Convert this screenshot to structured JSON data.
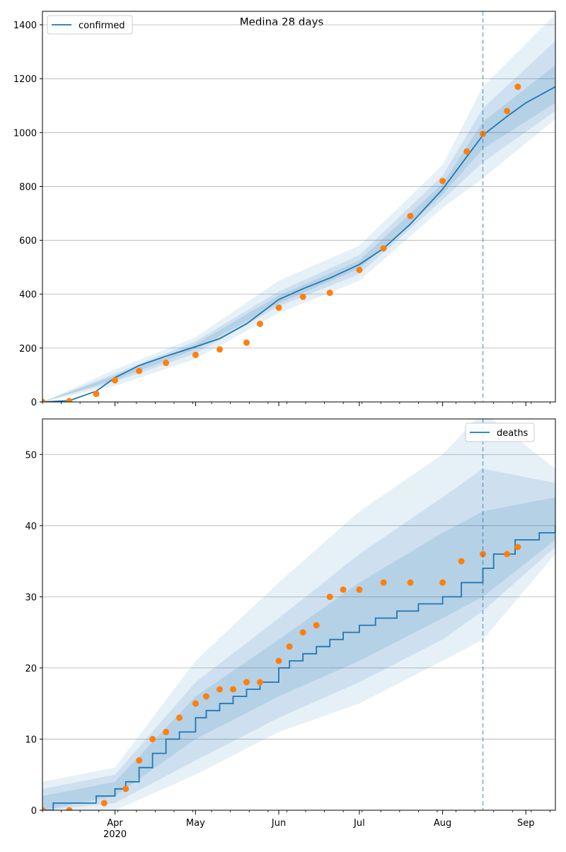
{
  "figure": {
    "title": "Medina 28 days"
  },
  "colors": {
    "line": "#1f77b4",
    "observed": "#ff7f0e",
    "band": "#1f77b4",
    "grid": "#b0b0b0",
    "cutoff": "#1f77b4"
  },
  "chart_data": [
    {
      "type": "line",
      "title": "Medina 28 days",
      "xlabel": "",
      "ylabel": "",
      "xlim": [
        "2020-03-05",
        "2020-09-12"
      ],
      "ylim": [
        0,
        1450
      ],
      "yticks": [
        0,
        200,
        400,
        600,
        800,
        1000,
        1200,
        1400
      ],
      "xtick_labels": [],
      "grid": "horizontal",
      "legend": {
        "position": "upper-left",
        "entries": [
          "confirmed"
        ]
      },
      "cutoff_date": "2020-08-16",
      "series": [
        {
          "name": "confirmed",
          "kind": "model-median",
          "x": [
            "2020-03-05",
            "2020-03-15",
            "2020-03-25",
            "2020-04-01",
            "2020-04-10",
            "2020-04-20",
            "2020-05-01",
            "2020-05-10",
            "2020-05-20",
            "2020-06-01",
            "2020-06-10",
            "2020-06-20",
            "2020-07-01",
            "2020-07-10",
            "2020-07-20",
            "2020-08-01",
            "2020-08-10",
            "2020-08-16",
            "2020-08-25",
            "2020-09-01",
            "2020-09-12"
          ],
          "y": [
            0,
            5,
            40,
            90,
            135,
            170,
            205,
            235,
            290,
            380,
            420,
            460,
            510,
            570,
            660,
            790,
            910,
            990,
            1060,
            1110,
            1170
          ]
        },
        {
          "name": "observed",
          "kind": "points",
          "x": [
            "2020-03-05",
            "2020-03-15",
            "2020-03-25",
            "2020-04-01",
            "2020-04-10",
            "2020-04-20",
            "2020-05-01",
            "2020-05-10",
            "2020-05-20",
            "2020-05-25",
            "2020-06-01",
            "2020-06-10",
            "2020-06-20",
            "2020-07-01",
            "2020-07-10",
            "2020-07-20",
            "2020-08-01",
            "2020-08-10",
            "2020-08-16",
            "2020-08-25",
            "2020-08-29"
          ],
          "y": [
            0,
            3,
            30,
            80,
            115,
            145,
            175,
            195,
            220,
            290,
            350,
            390,
            405,
            490,
            570,
            690,
            820,
            930,
            995,
            1080,
            1170
          ]
        }
      ],
      "bands": [
        {
          "level": "outer",
          "x": [
            "2020-03-05",
            "2020-04-01",
            "2020-05-01",
            "2020-06-01",
            "2020-07-01",
            "2020-08-01",
            "2020-08-16",
            "2020-09-12"
          ],
          "lo": [
            0,
            60,
            160,
            330,
            450,
            720,
            830,
            1050
          ],
          "hi": [
            0,
            120,
            240,
            450,
            580,
            880,
            1170,
            1440
          ]
        },
        {
          "level": "middle",
          "x": [
            "2020-03-05",
            "2020-04-01",
            "2020-05-01",
            "2020-06-01",
            "2020-07-01",
            "2020-08-01",
            "2020-08-16",
            "2020-09-12"
          ],
          "lo": [
            0,
            75,
            180,
            355,
            475,
            750,
            890,
            1080
          ],
          "hi": [
            0,
            105,
            225,
            410,
            545,
            840,
            1090,
            1340
          ]
        },
        {
          "level": "inner",
          "x": [
            "2020-03-05",
            "2020-04-01",
            "2020-05-01",
            "2020-06-01",
            "2020-07-01",
            "2020-08-01",
            "2020-08-16",
            "2020-09-12"
          ],
          "lo": [
            0,
            82,
            195,
            365,
            495,
            770,
            940,
            1110
          ],
          "hi": [
            0,
            98,
            215,
            395,
            525,
            810,
            1040,
            1250
          ]
        }
      ]
    },
    {
      "type": "line",
      "title": "",
      "xlabel": "",
      "ylabel": "",
      "xlim": [
        "2020-03-05",
        "2020-09-12"
      ],
      "ylim": [
        0,
        55
      ],
      "yticks": [
        0,
        10,
        20,
        30,
        40,
        50
      ],
      "xtick_labels": [
        {
          "date": "2020-04-01",
          "label": "Apr"
        },
        {
          "date": "2020-05-01",
          "label": "May"
        },
        {
          "date": "2020-06-01",
          "label": "Jun"
        },
        {
          "date": "2020-07-01",
          "label": "Jul"
        },
        {
          "date": "2020-08-01",
          "label": "Aug"
        },
        {
          "date": "2020-09-01",
          "label": "Sep"
        }
      ],
      "xaxis_year_label": "2020",
      "grid": "horizontal",
      "legend": {
        "position": "upper-right",
        "entries": [
          "deaths"
        ]
      },
      "cutoff_date": "2020-08-16",
      "series": [
        {
          "name": "deaths",
          "kind": "model-median-step",
          "x": [
            "2020-03-05",
            "2020-03-09",
            "2020-03-25",
            "2020-04-01",
            "2020-04-05",
            "2020-04-10",
            "2020-04-15",
            "2020-04-20",
            "2020-04-25",
            "2020-05-01",
            "2020-05-05",
            "2020-05-10",
            "2020-05-15",
            "2020-05-20",
            "2020-05-25",
            "2020-06-01",
            "2020-06-05",
            "2020-06-10",
            "2020-06-15",
            "2020-06-20",
            "2020-06-25",
            "2020-07-01",
            "2020-07-07",
            "2020-07-15",
            "2020-07-23",
            "2020-08-01",
            "2020-08-08",
            "2020-08-16",
            "2020-08-20",
            "2020-08-28",
            "2020-09-06",
            "2020-09-12"
          ],
          "y": [
            0,
            1,
            2,
            3,
            4,
            6,
            8,
            10,
            11,
            13,
            14,
            15,
            16,
            17,
            18,
            20,
            21,
            22,
            23,
            24,
            25,
            26,
            27,
            28,
            29,
            30,
            32,
            34,
            36,
            38,
            39,
            40
          ]
        },
        {
          "name": "observed",
          "kind": "points",
          "x": [
            "2020-03-05",
            "2020-03-15",
            "2020-03-28",
            "2020-04-05",
            "2020-04-10",
            "2020-04-15",
            "2020-04-20",
            "2020-04-25",
            "2020-05-01",
            "2020-05-05",
            "2020-05-10",
            "2020-05-15",
            "2020-05-20",
            "2020-05-25",
            "2020-06-01",
            "2020-06-05",
            "2020-06-10",
            "2020-06-15",
            "2020-06-20",
            "2020-06-25",
            "2020-07-01",
            "2020-07-10",
            "2020-07-20",
            "2020-08-01",
            "2020-08-08",
            "2020-08-16",
            "2020-08-25",
            "2020-08-29"
          ],
          "y": [
            0,
            0,
            1,
            3,
            7,
            10,
            11,
            13,
            15,
            16,
            17,
            17,
            18,
            18,
            21,
            23,
            25,
            26,
            30,
            31,
            31,
            32,
            32,
            32,
            35,
            36,
            36,
            37
          ]
        }
      ],
      "bands": [
        {
          "level": "outer",
          "x": [
            "2020-03-05",
            "2020-04-01",
            "2020-05-01",
            "2020-06-01",
            "2020-07-01",
            "2020-08-01",
            "2020-08-16",
            "2020-09-12"
          ],
          "lo": [
            0,
            0,
            5,
            11,
            15,
            21,
            24,
            36
          ],
          "hi": [
            4,
            6,
            21,
            32,
            42,
            50,
            56,
            48
          ]
        },
        {
          "level": "middle",
          "x": [
            "2020-03-05",
            "2020-04-01",
            "2020-05-01",
            "2020-06-01",
            "2020-07-01",
            "2020-08-01",
            "2020-08-16",
            "2020-09-12"
          ],
          "lo": [
            0,
            1,
            7,
            13,
            18,
            24,
            28,
            37
          ],
          "hi": [
            3,
            5,
            18,
            27,
            36,
            44,
            48,
            46
          ]
        },
        {
          "level": "inner",
          "x": [
            "2020-03-05",
            "2020-04-01",
            "2020-05-01",
            "2020-06-01",
            "2020-07-01",
            "2020-08-01",
            "2020-08-16",
            "2020-09-12"
          ],
          "lo": [
            0,
            2,
            10,
            16,
            21,
            27,
            30,
            38
          ],
          "hi": [
            2,
            4,
            16,
            24,
            32,
            39,
            42,
            44
          ]
        }
      ]
    }
  ]
}
